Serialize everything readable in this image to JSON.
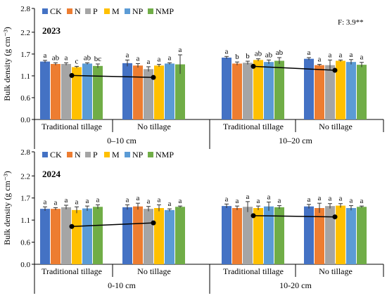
{
  "colors": {
    "CK": "#4472C4",
    "N": "#ED7D31",
    "P": "#A5A5A5",
    "M": "#FFC000",
    "NP": "#5B9BD5",
    "NMP": "#70AD47",
    "axis": "#000000",
    "errorbar": "#333333",
    "trendline": "#000000"
  },
  "chart_data": [
    {
      "type": "bar",
      "panel_label": "2023",
      "annotation": "F: 3.9**",
      "ylabel": "Bulk density (g cm⁻³)",
      "ylim": [
        0,
        2.8
      ],
      "yticks": [
        "0.0",
        "0.6",
        "1.1",
        "1.7",
        "2.2",
        "2.8"
      ],
      "ytick_values": [
        0.0,
        0.55,
        1.1,
        1.65,
        2.2,
        2.8
      ],
      "legend": [
        "CK",
        "N",
        "P",
        "M",
        "NP",
        "NMP"
      ],
      "legend_position": "top-left",
      "grid": false,
      "depth_labels": [
        "0–10 cm",
        "10–20 cm"
      ],
      "tillage_labels": [
        "Traditional tillage",
        "No tillage",
        "Traditional tillage",
        "No tillage"
      ],
      "groups": [
        {
          "tillage": "Traditional tillage",
          "depth": "0–10 cm",
          "values": [
            1.46,
            1.4,
            1.4,
            1.32,
            1.41,
            1.35
          ],
          "errors": [
            0.03,
            0.03,
            0.03,
            0.02,
            0.02,
            0.05
          ],
          "letters": [
            "a",
            "ab",
            "a",
            "c",
            "ab",
            "bc"
          ],
          "trend_point": 1.11
        },
        {
          "tillage": "No tillage",
          "depth": "0–10 cm",
          "values": [
            1.42,
            1.36,
            1.27,
            1.36,
            1.41,
            1.39
          ],
          "errors": [
            0.08,
            0.05,
            0.06,
            0.03,
            0.02,
            0.24
          ],
          "letters": [
            "a",
            "a",
            "a",
            "a",
            "a",
            "a"
          ],
          "trend_point": 1.06
        },
        {
          "tillage": "Traditional tillage",
          "depth": "10–20 cm",
          "values": [
            1.56,
            1.41,
            1.43,
            1.5,
            1.45,
            1.48
          ],
          "errors": [
            0.03,
            0.04,
            0.04,
            0.03,
            0.05,
            0.08
          ],
          "letters": [
            "a",
            "b",
            "b",
            "ab",
            "ab",
            "ab"
          ],
          "trend_point": 1.34
        },
        {
          "tillage": "No tillage",
          "depth": "10–20 cm",
          "values": [
            1.53,
            1.37,
            1.37,
            1.48,
            1.45,
            1.38
          ],
          "errors": [
            0.03,
            0.02,
            0.13,
            0.02,
            0.06,
            0.06
          ],
          "letters": [
            "a",
            "a",
            "a",
            "a",
            "a",
            "a"
          ],
          "trend_point": 1.24
        }
      ]
    },
    {
      "type": "bar",
      "panel_label": "2024",
      "annotation": "",
      "ylabel": "Bulk density (g cm⁻³)",
      "ylim": [
        0,
        2.8
      ],
      "yticks": [
        "0.0",
        "0.6",
        "1.1",
        "1.7",
        "2.2",
        "2.8"
      ],
      "ytick_values": [
        0.0,
        0.55,
        1.1,
        1.65,
        2.2,
        2.8
      ],
      "legend": [
        "CK",
        "N",
        "P",
        "M",
        "NP",
        "NMP"
      ],
      "legend_position": "top-left",
      "grid": false,
      "depth_labels": [
        "0-10 cm",
        "10-20 cm"
      ],
      "tillage_labels": [
        "Traditional tillage",
        "No tillage",
        "Traditional tillage",
        "No tillage"
      ],
      "groups": [
        {
          "tillage": "Traditional tillage",
          "depth": "0-10 cm",
          "values": [
            1.38,
            1.38,
            1.42,
            1.35,
            1.39,
            1.43
          ],
          "errors": [
            0.05,
            0.03,
            0.05,
            0.08,
            0.06,
            0.05
          ],
          "letters": [
            "a",
            "a",
            "a",
            "a",
            "a",
            "a"
          ],
          "trend_point": 0.94
        },
        {
          "tillage": "No tillage",
          "depth": "0-10 cm",
          "values": [
            1.42,
            1.44,
            1.38,
            1.4,
            1.35,
            1.43
          ],
          "errors": [
            0.06,
            0.08,
            0.06,
            0.08,
            0.03,
            0.02
          ],
          "letters": [
            "a",
            "a",
            "a",
            "a",
            "a",
            "a"
          ],
          "trend_point": 1.03
        },
        {
          "tillage": "Traditional tillage",
          "depth": "10-20 cm",
          "values": [
            1.45,
            1.4,
            1.43,
            1.4,
            1.44,
            1.42
          ],
          "errors": [
            0.05,
            0.05,
            0.13,
            0.05,
            0.11,
            0.04
          ],
          "letters": [
            "a",
            "a",
            "a",
            "a",
            "a",
            "a"
          ],
          "trend_point": 1.21
        },
        {
          "tillage": "No tillage",
          "depth": "10-20 cm",
          "values": [
            1.44,
            1.4,
            1.45,
            1.46,
            1.4,
            1.43
          ],
          "errors": [
            0.05,
            0.12,
            0.06,
            0.05,
            0.06,
            0.02
          ],
          "letters": [
            "a",
            "a",
            "a",
            "a",
            "a",
            "a"
          ],
          "trend_point": 1.18
        }
      ]
    }
  ]
}
